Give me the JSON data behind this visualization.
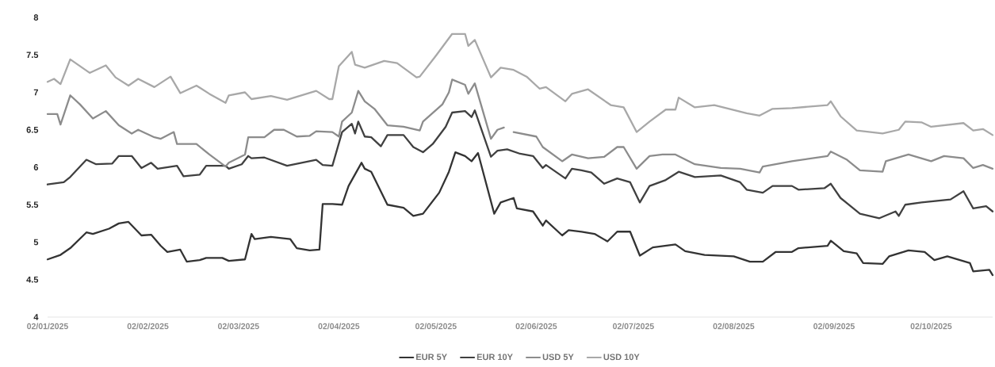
{
  "chart_data": {
    "type": "line",
    "xlim": [
      "2025-01-02",
      "2025-10-21"
    ],
    "xticks": [
      {
        "value": "2025-01-02",
        "label": "02/01/2025"
      },
      {
        "value": "2025-02-02",
        "label": "02/02/2025"
      },
      {
        "value": "2025-03-02",
        "label": "02/03/2025"
      },
      {
        "value": "2025-04-02",
        "label": "02/04/2025"
      },
      {
        "value": "2025-05-02",
        "label": "02/05/2025"
      },
      {
        "value": "2025-06-02",
        "label": "02/06/2025"
      },
      {
        "value": "2025-07-02",
        "label": "02/07/2025"
      },
      {
        "value": "2025-08-02",
        "label": "02/08/2025"
      },
      {
        "value": "2025-09-02",
        "label": "02/09/2025"
      },
      {
        "value": "2025-10-02",
        "label": "02/10/2025"
      }
    ],
    "ylim": [
      4,
      8
    ],
    "yticks": [
      4,
      4.5,
      5,
      5.5,
      6,
      6.5,
      7,
      7.5,
      8
    ],
    "legend": "bottom",
    "grid": false,
    "series": [
      {
        "name": "EUR 5Y",
        "color": "#333333",
        "x": [
          "2025-01-02",
          "2025-01-06",
          "2025-01-09",
          "2025-01-14",
          "2025-01-16",
          "2025-01-21",
          "2025-01-24",
          "2025-01-27",
          "2025-01-31",
          "2025-02-03",
          "2025-02-06",
          "2025-02-08",
          "2025-02-12",
          "2025-02-14",
          "2025-02-18",
          "2025-02-20",
          "2025-02-25",
          "2025-02-27",
          "2025-03-04",
          "2025-03-06",
          "2025-03-07",
          "2025-03-12",
          "2025-03-18",
          "2025-03-20",
          "2025-03-24",
          "2025-03-27",
          "2025-03-28",
          "2025-03-31",
          "2025-04-03",
          "2025-04-05",
          "2025-04-09",
          "2025-04-10",
          "2025-04-12",
          "2025-04-17",
          "2025-04-22",
          "2025-04-25",
          "2025-04-28",
          "2025-05-03",
          "2025-05-06",
          "2025-05-08",
          "2025-05-11",
          "2025-05-13",
          "2025-05-15",
          "2025-05-20",
          "2025-05-22",
          "2025-05-26",
          "2025-05-27",
          "2025-06-01",
          "2025-06-04",
          "2025-06-05",
          "2025-06-10",
          "2025-06-12",
          "2025-06-16",
          "2025-06-20",
          "2025-06-24",
          "2025-06-27",
          "2025-07-01",
          "2025-07-04",
          "2025-07-08",
          "2025-07-15",
          "2025-07-18",
          "2025-07-24",
          "2025-08-02",
          "2025-08-07",
          "2025-08-11",
          "2025-08-15",
          "2025-08-20",
          "2025-08-22",
          "2025-08-31",
          "2025-09-01",
          "2025-09-05",
          "2025-09-09",
          "2025-09-11",
          "2025-09-17",
          "2025-09-19",
          "2025-09-25",
          "2025-09-30",
          "2025-10-03",
          "2025-10-07",
          "2025-10-14",
          "2025-10-15",
          "2025-10-20",
          "2025-10-21"
        ],
        "values": [
          4.77,
          4.83,
          4.92,
          5.13,
          5.11,
          5.18,
          5.25,
          5.27,
          5.09,
          5.1,
          4.95,
          4.87,
          4.9,
          4.74,
          4.76,
          4.79,
          4.79,
          4.75,
          4.77,
          5.11,
          5.04,
          5.07,
          5.04,
          4.92,
          4.89,
          4.9,
          5.51,
          5.51,
          5.5,
          5.75,
          6.06,
          5.98,
          5.94,
          5.5,
          5.46,
          5.35,
          5.38,
          5.66,
          5.94,
          6.2,
          6.15,
          6.08,
          6.19,
          5.38,
          5.53,
          5.59,
          5.45,
          5.41,
          5.22,
          5.29,
          5.09,
          5.16,
          5.14,
          5.11,
          5.01,
          5.14,
          5.14,
          4.82,
          4.93,
          4.97,
          4.88,
          4.83,
          4.81,
          4.74,
          4.74,
          4.87,
          4.87,
          4.92,
          4.95,
          5.02,
          4.88,
          4.85,
          4.72,
          4.71,
          4.81,
          4.89,
          4.87,
          4.76,
          4.81,
          4.72,
          4.61,
          4.63,
          4.56
        ]
      },
      {
        "name": "EUR 10Y",
        "color": "#404040",
        "x": [
          "2025-01-02",
          "2025-01-07",
          "2025-01-09",
          "2025-01-14",
          "2025-01-17",
          "2025-01-22",
          "2025-01-24",
          "2025-01-28",
          "2025-01-31",
          "2025-02-03",
          "2025-02-05",
          "2025-02-11",
          "2025-02-13",
          "2025-02-18",
          "2025-02-20",
          "2025-02-26",
          "2025-02-27",
          "2025-03-03",
          "2025-03-05",
          "2025-03-06",
          "2025-03-10",
          "2025-03-17",
          "2025-03-26",
          "2025-03-28",
          "2025-03-31",
          "2025-04-03",
          "2025-04-06",
          "2025-04-07",
          "2025-04-08",
          "2025-04-10",
          "2025-04-12",
          "2025-04-15",
          "2025-04-17",
          "2025-04-22",
          "2025-04-25",
          "2025-04-28",
          "2025-05-01",
          "2025-05-05",
          "2025-05-07",
          "2025-05-11",
          "2025-05-13",
          "2025-05-14",
          "2025-05-19",
          "2025-05-21",
          "2025-05-24",
          "2025-05-28",
          "2025-06-01",
          "2025-06-04",
          "2025-06-05",
          "2025-06-11",
          "2025-06-13",
          "2025-06-16",
          "2025-06-19",
          "2025-06-23",
          "2025-06-27",
          "2025-07-01",
          "2025-07-04",
          "2025-07-07",
          "2025-07-12",
          "2025-07-16",
          "2025-07-21",
          "2025-07-29",
          "2025-08-04",
          "2025-08-06",
          "2025-08-11",
          "2025-08-14",
          "2025-08-20",
          "2025-08-22",
          "2025-08-30",
          "2025-09-01",
          "2025-09-04",
          "2025-09-10",
          "2025-09-16",
          "2025-09-21",
          "2025-09-22",
          "2025-09-24",
          "2025-09-29",
          "2025-10-08",
          "2025-10-12",
          "2025-10-15",
          "2025-10-19",
          "2025-10-21"
        ],
        "values": [
          5.77,
          5.8,
          5.87,
          6.1,
          6.04,
          6.05,
          6.15,
          6.15,
          5.99,
          6.06,
          5.98,
          6.02,
          5.88,
          5.9,
          6.02,
          6.02,
          5.98,
          6.04,
          6.15,
          6.12,
          6.13,
          6.02,
          6.1,
          6.03,
          6.02,
          6.47,
          6.58,
          6.45,
          6.61,
          6.41,
          6.4,
          6.28,
          6.43,
          6.43,
          6.27,
          6.2,
          6.31,
          6.54,
          6.73,
          6.75,
          6.67,
          6.76,
          6.14,
          6.22,
          6.24,
          6.18,
          6.15,
          5.99,
          6.03,
          5.85,
          5.98,
          5.96,
          5.93,
          5.78,
          5.85,
          5.8,
          5.53,
          5.75,
          5.83,
          5.94,
          5.87,
          5.89,
          5.8,
          5.7,
          5.66,
          5.75,
          5.75,
          5.7,
          5.72,
          5.78,
          5.59,
          5.38,
          5.32,
          5.41,
          5.35,
          5.5,
          5.53,
          5.57,
          5.68,
          5.45,
          5.48,
          5.41
        ]
      },
      {
        "name": "USD 5Y",
        "color": "#8c8c8c",
        "x": [
          "2025-01-02",
          "2025-01-05",
          "2025-01-06",
          "2025-01-09",
          "2025-01-12",
          "2025-01-16",
          "2025-01-20",
          "2025-01-24",
          "2025-01-28",
          "2025-01-30",
          "2025-02-04",
          "2025-02-06",
          "2025-02-10",
          "2025-02-11",
          "2025-02-17",
          "2025-02-21",
          "2025-02-26",
          "2025-02-27",
          "2025-03-04",
          "2025-03-05",
          "2025-03-10",
          "2025-03-13",
          "2025-03-16",
          "2025-03-20",
          "2025-03-24",
          "2025-03-26",
          "2025-03-31",
          "2025-04-02",
          "2025-04-03",
          "2025-04-06",
          "2025-04-08",
          "2025-04-10",
          "2025-04-13",
          "2025-04-17",
          "2025-04-22",
          "2025-04-27",
          "2025-04-28",
          "2025-05-04",
          "2025-05-06",
          "2025-05-07",
          "2025-05-11",
          "2025-05-12",
          "2025-05-14",
          "2025-05-19",
          "2025-05-21",
          "2025-05-23",
          "2025-05-24",
          "2025-05-26",
          "2025-06-02",
          "2025-06-04",
          "2025-06-10",
          "2025-06-13",
          "2025-06-18",
          "2025-06-23",
          "2025-06-27",
          "2025-06-29",
          "2025-07-03",
          "2025-07-07",
          "2025-07-11",
          "2025-07-15",
          "2025-07-21",
          "2025-07-29",
          "2025-08-04",
          "2025-08-10",
          "2025-08-11",
          "2025-08-20",
          "2025-08-31",
          "2025-09-01",
          "2025-09-06",
          "2025-09-10",
          "2025-09-17",
          "2025-09-18",
          "2025-09-25",
          "2025-10-02",
          "2025-10-06",
          "2025-10-12",
          "2025-10-15",
          "2025-10-18",
          "2025-10-21"
        ],
        "values": [
          6.71,
          6.71,
          6.57,
          6.96,
          6.84,
          6.65,
          6.75,
          6.56,
          6.45,
          6.5,
          6.4,
          6.38,
          6.47,
          6.31,
          6.31,
          6.17,
          6.01,
          6.06,
          6.17,
          6.4,
          6.4,
          6.5,
          6.5,
          6.41,
          6.42,
          6.48,
          6.47,
          6.41,
          6.61,
          6.73,
          7.02,
          6.88,
          6.78,
          6.56,
          6.54,
          6.49,
          6.61,
          6.84,
          7.0,
          7.17,
          7.1,
          6.98,
          7.12,
          6.38,
          6.5,
          6.53,
          null,
          6.47,
          6.41,
          6.27,
          6.08,
          6.17,
          6.12,
          6.14,
          6.27,
          6.27,
          5.98,
          6.15,
          6.17,
          6.17,
          6.04,
          5.99,
          5.98,
          5.93,
          6.01,
          6.08,
          6.15,
          6.21,
          6.1,
          5.96,
          5.94,
          6.08,
          6.17,
          6.08,
          6.15,
          6.12,
          5.99,
          6.03,
          5.98
        ]
      },
      {
        "name": "USD 10Y",
        "color": "#a8a8a8",
        "x": [
          "2025-01-02",
          "2025-01-04",
          "2025-01-06",
          "2025-01-09",
          "2025-01-15",
          "2025-01-20",
          "2025-01-23",
          "2025-01-27",
          "2025-01-30",
          "2025-02-04",
          "2025-02-09",
          "2025-02-12",
          "2025-02-17",
          "2025-02-21",
          "2025-02-26",
          "2025-02-27",
          "2025-03-04",
          "2025-03-06",
          "2025-03-12",
          "2025-03-17",
          "2025-03-26",
          "2025-03-30",
          "2025-03-31",
          "2025-04-02",
          "2025-04-06",
          "2025-04-07",
          "2025-04-10",
          "2025-04-16",
          "2025-04-20",
          "2025-04-26",
          "2025-04-27",
          "2025-05-02",
          "2025-05-07",
          "2025-05-11",
          "2025-05-12",
          "2025-05-14",
          "2025-05-19",
          "2025-05-22",
          "2025-05-26",
          "2025-05-30",
          "2025-06-03",
          "2025-06-05",
          "2025-06-11",
          "2025-06-13",
          "2025-06-18",
          "2025-06-25",
          "2025-06-29",
          "2025-07-03",
          "2025-07-07",
          "2025-07-12",
          "2025-07-15",
          "2025-07-16",
          "2025-07-21",
          "2025-07-27",
          "2025-08-06",
          "2025-08-10",
          "2025-08-14",
          "2025-08-20",
          "2025-08-31",
          "2025-09-01",
          "2025-09-04",
          "2025-09-09",
          "2025-09-17",
          "2025-09-22",
          "2025-09-24",
          "2025-09-29",
          "2025-10-02",
          "2025-10-12",
          "2025-10-15",
          "2025-10-18",
          "2025-10-21"
        ],
        "values": [
          7.14,
          7.18,
          7.11,
          7.44,
          7.26,
          7.36,
          7.2,
          7.09,
          7.18,
          7.07,
          7.21,
          6.99,
          7.09,
          6.98,
          6.86,
          6.96,
          7.0,
          6.91,
          6.95,
          6.9,
          7.02,
          6.91,
          6.91,
          7.35,
          7.54,
          7.37,
          7.33,
          7.42,
          7.39,
          7.2,
          7.21,
          7.49,
          7.78,
          7.78,
          7.62,
          7.7,
          7.2,
          7.33,
          7.3,
          7.21,
          7.05,
          7.07,
          6.88,
          6.98,
          7.04,
          6.83,
          6.8,
          6.47,
          6.61,
          6.77,
          6.77,
          6.93,
          6.8,
          6.83,
          6.72,
          6.69,
          6.78,
          6.79,
          6.83,
          6.88,
          6.68,
          6.49,
          6.45,
          6.5,
          6.61,
          6.6,
          6.54,
          6.59,
          6.49,
          6.51,
          6.43
        ]
      }
    ]
  }
}
